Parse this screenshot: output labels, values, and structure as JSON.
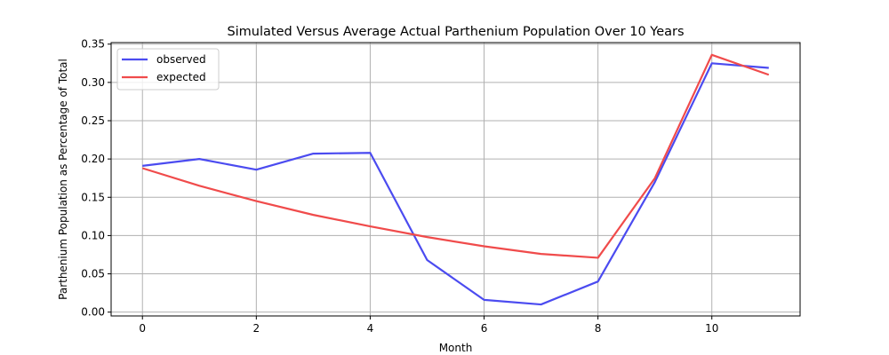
{
  "chart_data": {
    "type": "line",
    "title": "Simulated Versus Average Actual Parthenium Population Over 10 Years",
    "xlabel": "Month",
    "ylabel": "Parthenium Population as Percentage of Total",
    "xlim": [
      -0.55,
      11.55
    ],
    "ylim": [
      -0.005,
      0.352
    ],
    "x_ticks": [
      0,
      2,
      4,
      6,
      8,
      10
    ],
    "y_ticks": [
      0.0,
      0.05,
      0.1,
      0.15,
      0.2,
      0.25,
      0.3,
      0.35
    ],
    "grid": true,
    "legend_position": "top-left",
    "x": [
      0,
      1,
      2,
      3,
      4,
      5,
      6,
      7,
      8,
      9,
      10,
      11
    ],
    "series": [
      {
        "name": "observed",
        "color": "#4b4bf0",
        "values": [
          0.191,
          0.2,
          0.186,
          0.207,
          0.208,
          0.068,
          0.016,
          0.01,
          0.04,
          0.17,
          0.325,
          0.319
        ]
      },
      {
        "name": "expected",
        "color": "#f04b4b",
        "values": [
          0.188,
          0.165,
          0.145,
          0.127,
          0.112,
          0.098,
          0.086,
          0.076,
          0.071,
          0.175,
          0.336,
          0.31
        ]
      }
    ]
  }
}
